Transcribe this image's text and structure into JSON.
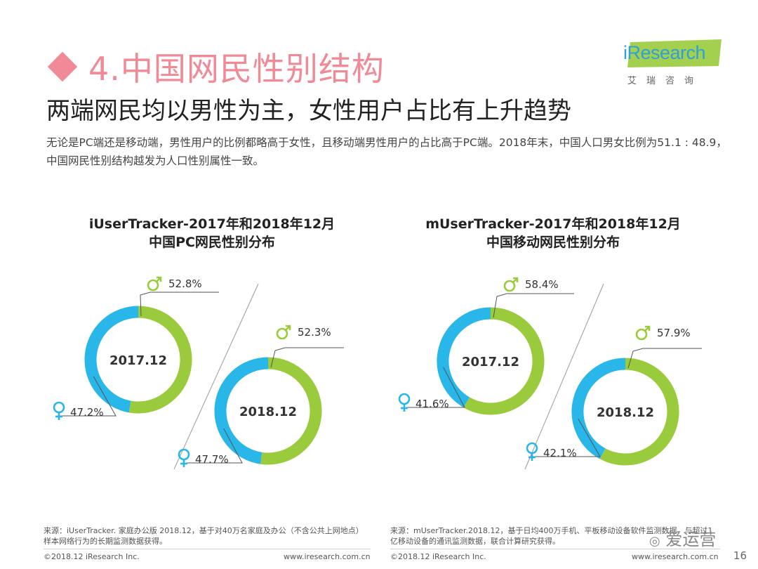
{
  "header": {
    "title": "4.中国网民性别结构",
    "subtitle": "两端网民均以男性为主，女性用户占比有上升趋势",
    "description": "无论是PC端还是移动端，男性用户的比例都略高于女性，且移动端男性用户的占比高于PC端。2018年末，中国人口男女比例为51.1 : 48.9，中国网民性别结构越发为人口性别属性一致。"
  },
  "logo": {
    "text": "iResearch",
    "subtext": "艾瑞咨询"
  },
  "colors": {
    "male": "#9acb3c",
    "female": "#29b6e9",
    "accent": "#f08a97"
  },
  "chart_data": [
    {
      "type": "pie",
      "title": "iUserTracker-2017年和2018年12月\n中国PC网民性别分布",
      "title_lines": [
        "iUserTracker-2017年和2018年12月",
        "中国PC网民性别分布"
      ],
      "series": [
        {
          "name": "2017.12",
          "slices": [
            {
              "label": "♂",
              "value": 52.8,
              "text": "52.8%"
            },
            {
              "label": "♀",
              "value": 47.2,
              "text": "47.2%"
            }
          ]
        },
        {
          "name": "2018.12",
          "slices": [
            {
              "label": "♂",
              "value": 52.3,
              "text": "52.3%"
            },
            {
              "label": "♀",
              "value": 47.7,
              "text": "47.7%"
            }
          ]
        }
      ]
    },
    {
      "type": "pie",
      "title": "mUserTracker-2017年和2018年12月\n中国移动网民性别分布",
      "title_lines": [
        "mUserTracker-2017年和2018年12月",
        "中国移动网民性别分布"
      ],
      "series": [
        {
          "name": "2017.12",
          "slices": [
            {
              "label": "♂",
              "value": 58.4,
              "text": "58.4%"
            },
            {
              "label": "♀",
              "value": 41.6,
              "text": "41.6%"
            }
          ]
        },
        {
          "name": "2018.12",
          "slices": [
            {
              "label": "♂",
              "value": 57.9,
              "text": "57.9%"
            },
            {
              "label": "♀",
              "value": 42.1,
              "text": "42.1%"
            }
          ]
        }
      ]
    }
  ],
  "footer": {
    "left_source": "来源：iUserTracker. 家庭办公版 2018.12，基于对40万名家庭及办公（不含公共上网地点）样本网络行为的长期监测数据获得。",
    "left_copyright": "©2018.12 iResearch Inc.",
    "left_url": "www.iresearch.com.cn",
    "right_source": "来源：mUserTracker.2018.12，基于日均400万手机、平板移动设备软件监测数据，与超过1亿移动设备的通讯监测数据，联合计算研究获得。",
    "right_copyright": "©2018.12 iResearch Inc.",
    "right_url": "www.iresearch.com.cn",
    "page_number": "16",
    "watermark": "爱运营"
  }
}
